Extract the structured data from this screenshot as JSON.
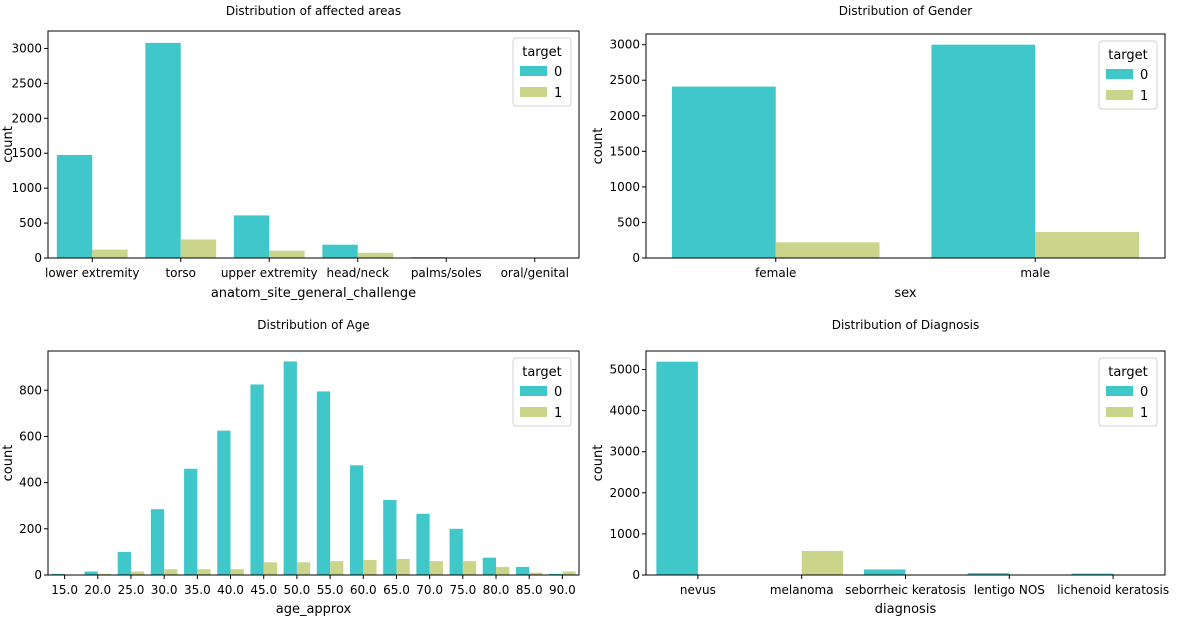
{
  "colors": {
    "target_0": "#40c7c9",
    "target_1": "#cad48b"
  },
  "chart_data": [
    {
      "type": "bar",
      "title": "Distribution of affected areas",
      "xlabel": "anatom_site_general_challenge",
      "ylabel": "count",
      "ylim": [
        0,
        3250
      ],
      "yticks": [
        0,
        500,
        1000,
        1500,
        2000,
        2500,
        3000
      ],
      "categories": [
        "lower extremity",
        "torso",
        "upper extremity",
        "head/neck",
        "palms/soles",
        "oral/genital"
      ],
      "series": [
        {
          "name": "0",
          "values": [
            1475,
            3080,
            610,
            190,
            12,
            4
          ]
        },
        {
          "name": "1",
          "values": [
            120,
            265,
            105,
            75,
            8,
            6
          ]
        }
      ],
      "legend": {
        "title": "target",
        "placement": "top-right"
      },
      "grid": false
    },
    {
      "type": "bar",
      "title": "Distribution of Gender",
      "xlabel": "sex",
      "ylabel": "count",
      "ylim": [
        0,
        3150
      ],
      "yticks": [
        0,
        500,
        1000,
        1500,
        2000,
        2500,
        3000
      ],
      "categories": [
        "female",
        "male"
      ],
      "series": [
        {
          "name": "0",
          "values": [
            2410,
            3000
          ]
        },
        {
          "name": "1",
          "values": [
            220,
            365
          ]
        }
      ],
      "legend": {
        "title": "target",
        "placement": "top-right"
      },
      "grid": false
    },
    {
      "type": "bar",
      "title": "Distribution of Age",
      "xlabel": "age_approx",
      "ylabel": "count",
      "ylim": [
        0,
        970
      ],
      "yticks": [
        0,
        200,
        400,
        600,
        800
      ],
      "categories": [
        "15.0",
        "20.0",
        "25.0",
        "30.0",
        "35.0",
        "40.0",
        "45.0",
        "50.0",
        "55.0",
        "60.0",
        "65.0",
        "70.0",
        "75.0",
        "80.0",
        "85.0",
        "90.0"
      ],
      "series": [
        {
          "name": "0",
          "values": [
            5,
            15,
            100,
            285,
            460,
            625,
            825,
            925,
            795,
            475,
            325,
            265,
            200,
            75,
            35,
            5
          ]
        },
        {
          "name": "1",
          "values": [
            2,
            5,
            15,
            25,
            25,
            25,
            55,
            55,
            60,
            65,
            70,
            60,
            60,
            35,
            10,
            15
          ]
        }
      ],
      "legend": {
        "title": "target",
        "placement": "top-right"
      },
      "grid": false
    },
    {
      "type": "bar",
      "title": "Distribution of Diagnosis",
      "xlabel": "diagnosis",
      "ylabel": "count",
      "ylim": [
        0,
        5450
      ],
      "yticks": [
        0,
        1000,
        2000,
        3000,
        4000,
        5000
      ],
      "categories": [
        "nevus",
        "melanoma",
        "seborrheic keratosis",
        "lentigo NOS",
        "lichenoid keratosis"
      ],
      "series": [
        {
          "name": "0",
          "values": [
            5190,
            0,
            135,
            45,
            35
          ]
        },
        {
          "name": "1",
          "values": [
            0,
            585,
            0,
            0,
            0
          ]
        }
      ],
      "legend": {
        "title": "target",
        "placement": "top-right"
      },
      "grid": false
    }
  ]
}
